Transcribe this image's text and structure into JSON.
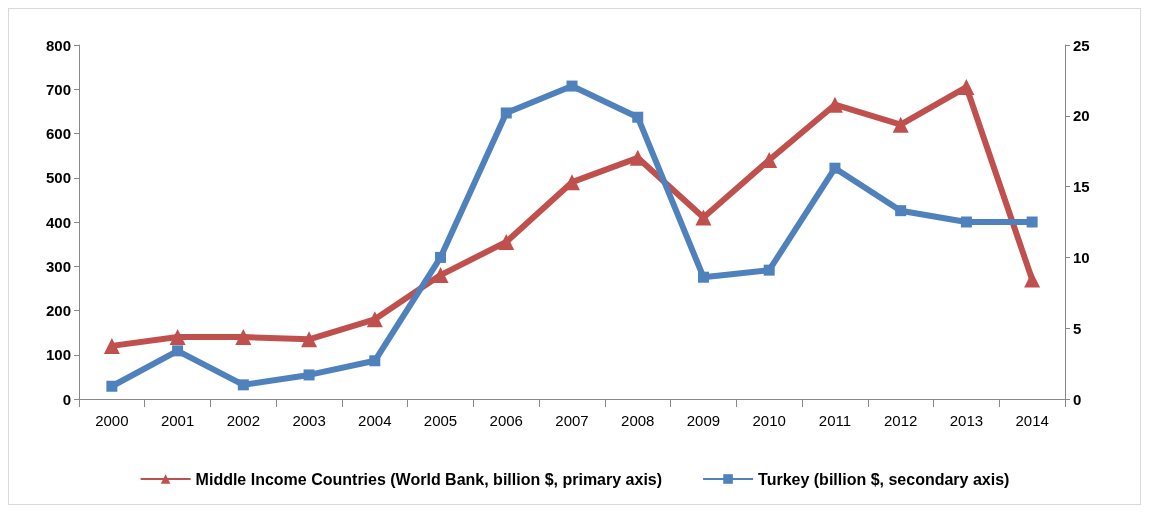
{
  "chart_data": {
    "type": "line",
    "categories": [
      "2000",
      "2001",
      "2002",
      "2003",
      "2004",
      "2005",
      "2006",
      "2007",
      "2008",
      "2009",
      "2010",
      "2011",
      "2012",
      "2013",
      "2014"
    ],
    "series": [
      {
        "name": "Middle Income Countries (World Bank, billion $, primary axis)",
        "color": "#c0504d",
        "marker": "triangle",
        "values": [
          120,
          140,
          140,
          135,
          180,
          280,
          355,
          490,
          545,
          410,
          540,
          665,
          620,
          705,
          270
        ]
      },
      {
        "name": "Turkey (billion $, secondary axis)",
        "color": "#4f81bd",
        "marker": "square",
        "axis": "y2",
        "values": [
          0.9,
          3.4,
          1.0,
          1.7,
          2.7,
          10,
          20.2,
          22.1,
          19.9,
          8.6,
          9.1,
          16.3,
          13.3,
          12.5,
          12.5
        ]
      }
    ],
    "ylim": [
      0,
      800
    ],
    "yticks": [
      0,
      100,
      200,
      300,
      400,
      500,
      600,
      700,
      800
    ],
    "y2lim": [
      0,
      25
    ],
    "y2ticks": [
      0,
      5,
      10,
      15,
      20,
      25
    ],
    "grid": false,
    "legend": "bottom",
    "line_style": "solid"
  }
}
